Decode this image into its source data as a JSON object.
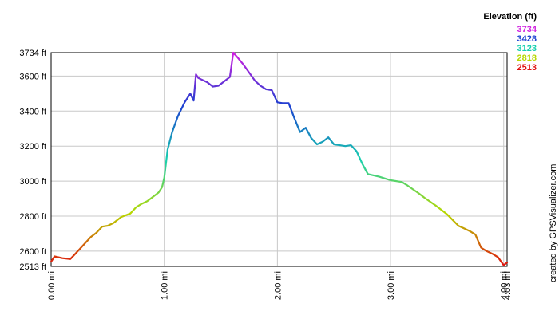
{
  "chart_data": {
    "type": "line",
    "x_unit": "mi",
    "y_unit": "ft",
    "xlim": [
      0,
      4.03
    ],
    "ylim": [
      2513,
      3734
    ],
    "x_ticks": [
      {
        "value": 0,
        "label": "0.00 mi"
      },
      {
        "value": 1,
        "label": "1.00 mi"
      },
      {
        "value": 2,
        "label": "2.00 mi"
      },
      {
        "value": 3,
        "label": "3.00 mi"
      },
      {
        "value": 4,
        "label": "4.00 mi"
      },
      {
        "value": 4.03,
        "label": "4.03 mi"
      }
    ],
    "y_ticks": [
      {
        "value": 2513,
        "label": "2513 ft"
      },
      {
        "value": 2600,
        "label": "2600 ft"
      },
      {
        "value": 2800,
        "label": "2800 ft"
      },
      {
        "value": 3000,
        "label": "3000 ft"
      },
      {
        "value": 3200,
        "label": "3200 ft"
      },
      {
        "value": 3400,
        "label": "3400 ft"
      },
      {
        "value": 3600,
        "label": "3600 ft"
      },
      {
        "value": 3734,
        "label": "3734 ft"
      }
    ],
    "grid": true,
    "legend": {
      "title": "Elevation (ft)",
      "placement": "top-right",
      "entries": [
        {
          "value": "3734",
          "color": "#d020e0"
        },
        {
          "value": "3428",
          "color": "#1a3fd0"
        },
        {
          "value": "3123",
          "color": "#18d0b0"
        },
        {
          "value": "2818",
          "color": "#b8d800"
        },
        {
          "value": "2513",
          "color": "#e01010"
        }
      ]
    },
    "series": [
      {
        "x": [
          0.0,
          0.03,
          0.1,
          0.17,
          0.2,
          0.25,
          0.3,
          0.35,
          0.4,
          0.45,
          0.5,
          0.55,
          0.62,
          0.7,
          0.75,
          0.8,
          0.85,
          0.9,
          0.95,
          0.98,
          1.0,
          1.03,
          1.07,
          1.12,
          1.18,
          1.23,
          1.26,
          1.28,
          1.3,
          1.33,
          1.38,
          1.43,
          1.48,
          1.53,
          1.58,
          1.61,
          1.65,
          1.7,
          1.75,
          1.8,
          1.85,
          1.9,
          1.95,
          2.0,
          2.05,
          2.1,
          2.15,
          2.2,
          2.25,
          2.3,
          2.35,
          2.4,
          2.45,
          2.5,
          2.55,
          2.6,
          2.65,
          2.7,
          2.75,
          2.8,
          2.9,
          2.95,
          3.0,
          3.1,
          3.15,
          3.25,
          3.3,
          3.4,
          3.5,
          3.6,
          3.65,
          3.7,
          3.75,
          3.8,
          3.85,
          3.9,
          3.95,
          4.0,
          4.03
        ],
        "y": [
          2540,
          2570,
          2560,
          2555,
          2575,
          2610,
          2645,
          2680,
          2705,
          2740,
          2745,
          2760,
          2795,
          2815,
          2850,
          2870,
          2885,
          2910,
          2935,
          2965,
          3020,
          3180,
          3280,
          3370,
          3450,
          3500,
          3460,
          3610,
          3590,
          3580,
          3565,
          3540,
          3545,
          3570,
          3595,
          3734,
          3705,
          3665,
          3620,
          3575,
          3545,
          3525,
          3520,
          3450,
          3445,
          3445,
          3360,
          3280,
          3305,
          3245,
          3210,
          3225,
          3250,
          3210,
          3205,
          3200,
          3205,
          3170,
          3100,
          3040,
          3025,
          3015,
          3005,
          2995,
          2975,
          2930,
          2905,
          2860,
          2810,
          2745,
          2730,
          2715,
          2695,
          2620,
          2600,
          2585,
          2565,
          2520,
          2535
        ]
      }
    ]
  },
  "credit": "created by GPSVisualizer.com"
}
